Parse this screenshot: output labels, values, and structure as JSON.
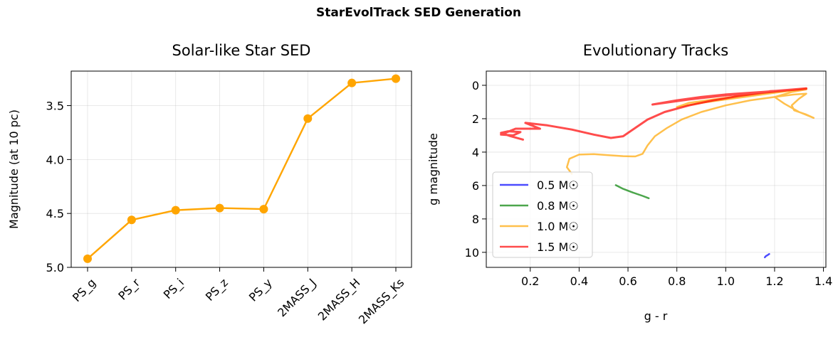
{
  "suptitle": "StarEvolTrack SED Generation",
  "chart_data": [
    {
      "type": "line",
      "title": "Solar-like Star SED",
      "xlabel": "",
      "ylabel": "Magnitude (at 10 pc)",
      "y_inverted": true,
      "ylim": [
        5.0,
        3.18
      ],
      "yticks": [
        3.5,
        4.0,
        4.5,
        5.0
      ],
      "ytick_labels": [
        "3.5",
        "4.0",
        "4.5",
        "5.0"
      ],
      "categories": [
        "PS_g",
        "PS_r",
        "PS_i",
        "PS_z",
        "PS_y",
        "2MASS_J",
        "2MASS_H",
        "2MASS_Ks"
      ],
      "values": [
        4.92,
        4.56,
        4.47,
        4.45,
        4.46,
        3.62,
        3.29,
        3.25
      ],
      "color": "#FFA500",
      "marker": "circle",
      "grid": true
    },
    {
      "type": "line",
      "title": "Evolutionary Tracks",
      "xlabel": "g - r",
      "ylabel": "g magnitude",
      "y_inverted": true,
      "xlim": [
        0.02,
        1.41
      ],
      "ylim": [
        10.9,
        -0.85
      ],
      "xticks": [
        0.2,
        0.4,
        0.6,
        0.8,
        1.0,
        1.2,
        1.4
      ],
      "xtick_labels": [
        "0.2",
        "0.4",
        "0.6",
        "0.8",
        "1.0",
        "1.2",
        "1.4"
      ],
      "yticks": [
        0,
        2,
        4,
        6,
        8,
        10
      ],
      "ytick_labels": [
        "0",
        "2",
        "4",
        "6",
        "8",
        "10"
      ],
      "grid": true,
      "legend_position": "lower-left",
      "series": [
        {
          "name": "0.5 M☉",
          "color": "#0000FF",
          "x": [
            1.16,
            1.165,
            1.17,
            1.178
          ],
          "y": [
            10.3,
            10.22,
            10.18,
            10.1
          ]
        },
        {
          "name": "0.8 M☉",
          "color": "#008000",
          "x": [
            0.55,
            0.58,
            0.62,
            0.66,
            0.685
          ],
          "y": [
            5.98,
            6.2,
            6.42,
            6.62,
            6.76
          ]
        },
        {
          "name": "1.0 M☉",
          "color": "#FFA500",
          "x": [
            0.37,
            0.35,
            0.36,
            0.4,
            0.46,
            0.52,
            0.58,
            0.63,
            0.66,
            0.68,
            0.71,
            0.76,
            0.82,
            0.9,
            1.0,
            1.1,
            1.2,
            1.28,
            1.33,
            1.3,
            1.27,
            1.28,
            1.33,
            1.36,
            1.3,
            1.24,
            1.2,
            1.27,
            1.33,
            1.25,
            1.15,
            1.05,
            0.95,
            0.85,
            0.8,
            0.9,
            1.05,
            1.2,
            1.33
          ],
          "y": [
            5.3,
            4.9,
            4.4,
            4.15,
            4.12,
            4.18,
            4.24,
            4.26,
            4.1,
            3.6,
            3.05,
            2.55,
            2.05,
            1.6,
            1.2,
            0.9,
            0.7,
            0.55,
            0.5,
            0.8,
            1.2,
            1.5,
            1.75,
            1.95,
            1.6,
            1.1,
            0.7,
            0.4,
            0.25,
            0.35,
            0.5,
            0.65,
            0.85,
            1.05,
            1.3,
            1.05,
            0.75,
            0.45,
            0.2
          ]
        },
        {
          "name": "1.5 M☉",
          "color": "#FF0000",
          "x": [
            0.17,
            0.12,
            0.08,
            0.11,
            0.16,
            0.13,
            0.08,
            0.14,
            0.24,
            0.18,
            0.27,
            0.37,
            0.46,
            0.53,
            0.58,
            0.63,
            0.68,
            0.75,
            0.85,
            0.95,
            1.05,
            1.15,
            1.25,
            1.33,
            1.3,
            1.2,
            1.1,
            1.0,
            0.9,
            0.8,
            0.7,
            0.85,
            1.0,
            1.15,
            1.3,
            1.33,
            1.25,
            1.18
          ],
          "y": [
            3.25,
            3.05,
            2.85,
            2.75,
            2.8,
            3.0,
            2.95,
            2.6,
            2.6,
            2.25,
            2.4,
            2.65,
            2.95,
            3.15,
            3.05,
            2.55,
            2.05,
            1.6,
            1.2,
            0.9,
            0.65,
            0.45,
            0.3,
            0.2,
            0.25,
            0.35,
            0.45,
            0.55,
            0.7,
            0.9,
            1.15,
            0.85,
            0.6,
            0.4,
            0.22,
            0.18,
            0.3,
            0.35
          ]
        }
      ]
    }
  ]
}
